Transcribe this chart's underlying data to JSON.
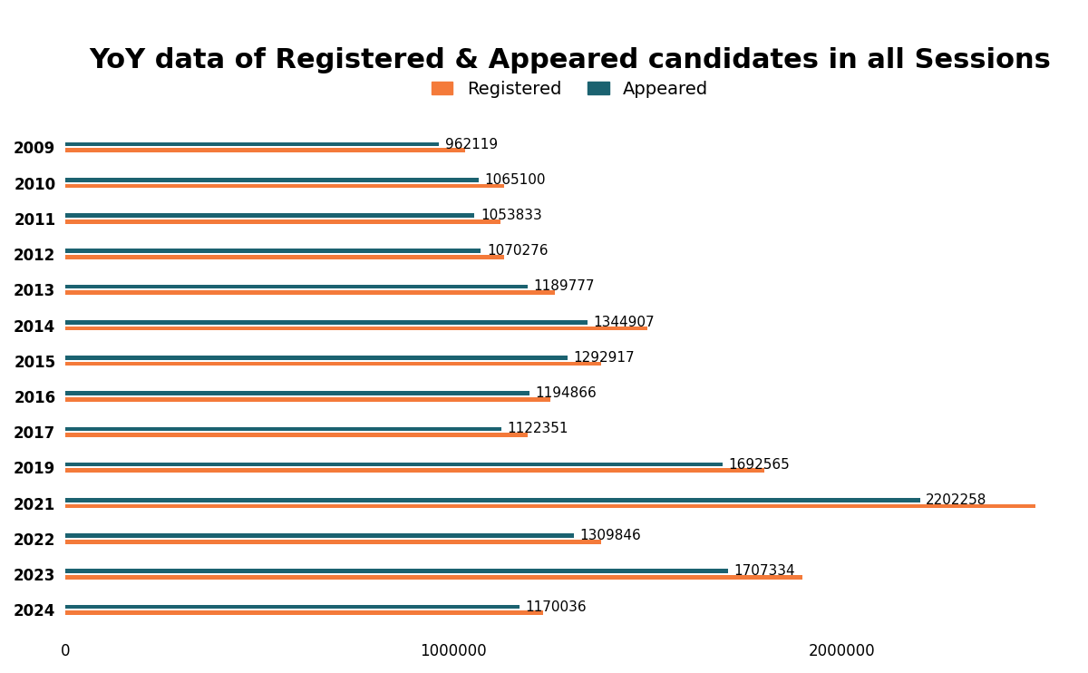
{
  "title": "YoY data of Registered & Appeared candidates in all Sessions",
  "years": [
    "2009",
    "2010",
    "2011",
    "2012",
    "2013",
    "2014",
    "2015",
    "2016",
    "2017",
    "2019",
    "2021",
    "2022",
    "2023",
    "2024"
  ],
  "registered": [
    1030000,
    1130000,
    1120000,
    1130000,
    1260000,
    1500000,
    1380000,
    1250000,
    1190000,
    1800000,
    2500000,
    1380000,
    1900000,
    1230000
  ],
  "appeared": [
    962119,
    1065100,
    1053833,
    1070276,
    1189777,
    1344907,
    1292917,
    1194866,
    1122351,
    1692565,
    2202258,
    1309846,
    1707334,
    1170036
  ],
  "registered_color": "#F47A3A",
  "appeared_color": "#1B6270",
  "background_color": "#FFFFFF",
  "bar_height": 0.12,
  "bar_gap": 0.05,
  "xlim": [
    0,
    2600000
  ],
  "xticks": [
    0,
    1000000,
    2000000
  ],
  "legend_labels": [
    "Registered",
    "Appeared"
  ],
  "title_fontsize": 22,
  "label_fontsize": 11,
  "tick_fontsize": 12,
  "year_fontsize": 12
}
